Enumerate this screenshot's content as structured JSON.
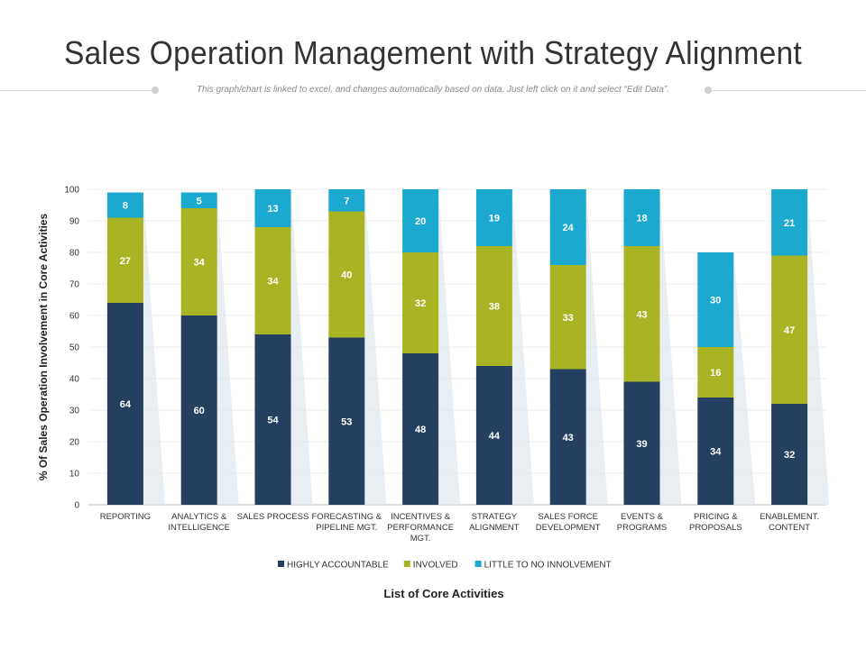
{
  "title": "Sales Operation Management with Strategy Alignment",
  "subtitle": "This graph/chart is linked to excel, and changes automatically  based on data. Just left click on it and select “Edit Data”.",
  "colors": {
    "highly_accountable": "#243f60",
    "involved": "#a8b424",
    "little": "#1ba9cf",
    "bar_label": "#ffffff",
    "axis_text": "#333333"
  },
  "chart_data": {
    "type": "bar",
    "stacked": true,
    "title": "Sales Operation Management with Strategy Alignment",
    "xlabel": "List of Core Activities",
    "ylabel": "% Of Sales Operation Involvement in Core Activities",
    "ylim": [
      0,
      100
    ],
    "yticks": [
      "0",
      "10",
      "20",
      "30",
      "40",
      "50",
      "60",
      "70",
      "80",
      "90",
      "100"
    ],
    "grid": true,
    "legend_position": "bottom",
    "categories": [
      [
        "REPORTING"
      ],
      [
        "ANALYTICS &",
        "INTELLIGENCE"
      ],
      [
        "SALES PROCESS"
      ],
      [
        "FORECASTING &",
        "PIPELINE MGT."
      ],
      [
        "INCENTIVES &",
        "PERFORMANCE",
        "MGT."
      ],
      [
        "STRATEGY",
        "ALIGNMENT"
      ],
      [
        "SALES FORCE",
        "DEVELOPMENT"
      ],
      [
        "EVENTS &",
        "PROGRAMS"
      ],
      [
        "PRICING &",
        "PROPOSALS"
      ],
      [
        "ENABLEMENT.",
        "CONTENT"
      ]
    ],
    "series": [
      {
        "name": "HIGHLY ACCOUNTABLE",
        "key": "highly_accountable",
        "values": [
          64,
          60,
          54,
          53,
          48,
          44,
          43,
          39,
          34,
          32
        ]
      },
      {
        "name": "INVOLVED",
        "key": "involved",
        "values": [
          27,
          34,
          34,
          40,
          32,
          38,
          33,
          43,
          16,
          47
        ]
      },
      {
        "name": "LITTLE TO NO INNOLVEMENT",
        "key": "little",
        "values": [
          8,
          5,
          13,
          7,
          20,
          19,
          24,
          18,
          30,
          21
        ]
      }
    ]
  }
}
